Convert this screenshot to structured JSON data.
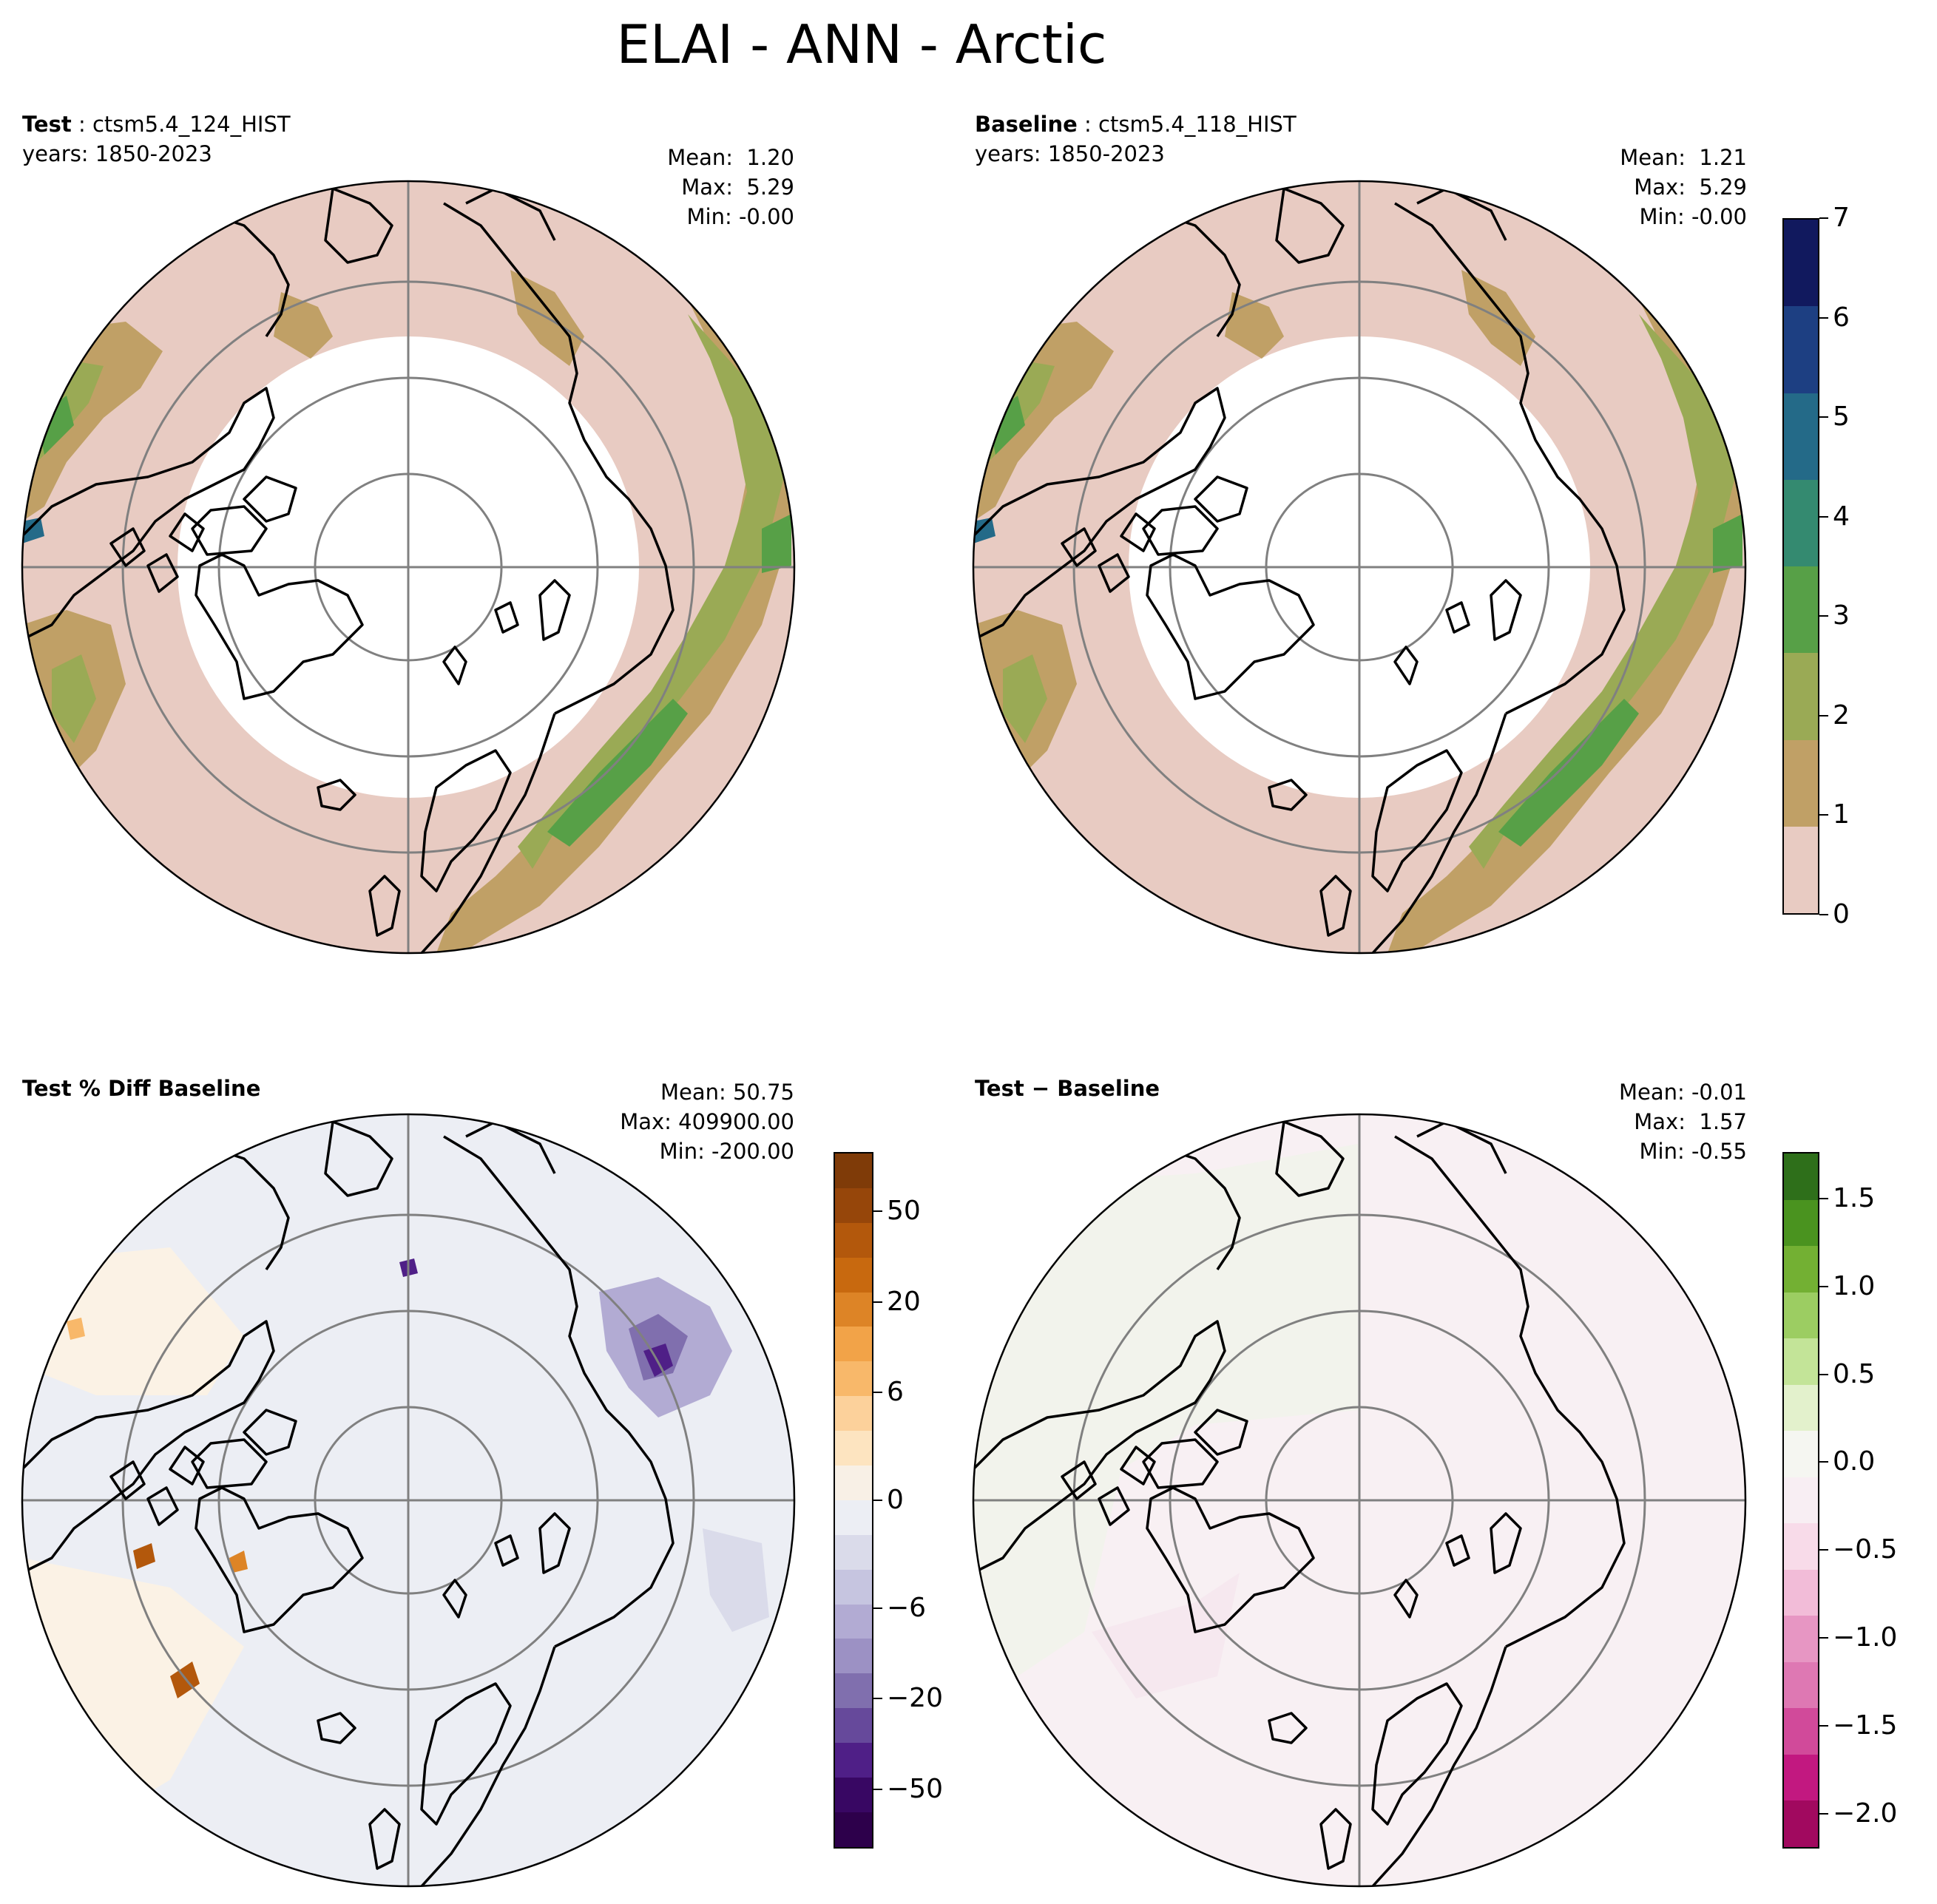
{
  "title": "ELAI - ANN - Arctic",
  "panels": [
    {
      "id": "test",
      "label_bold": "Test",
      "label_sep": " : ",
      "label_name": "ctsm5.4_124_HIST",
      "years": "years: 1850-2023",
      "stats": {
        "mean": "Mean:  1.20",
        "max": "Max:  5.29",
        "min": "Min: -0.00"
      }
    },
    {
      "id": "baseline",
      "label_bold": "Baseline",
      "label_sep": " : ",
      "label_name": "ctsm5.4_118_HIST",
      "years": "years: 1850-2023",
      "stats": {
        "mean": "Mean:  1.21",
        "max": "Max:  5.29",
        "min": "Min: -0.00"
      }
    },
    {
      "id": "pctdiff",
      "label_bold": "Test % Diff Baseline",
      "stats": {
        "mean": "Mean: 50.75",
        "max": "Max: 409900.00",
        "min": "Min: -200.00"
      }
    },
    {
      "id": "diff",
      "label_bold": "Test − Baseline",
      "stats": {
        "mean": "Mean: -0.01",
        "max": "Max:  1.57",
        "min": "Min: -0.55"
      }
    }
  ],
  "chart_data": [
    {
      "type": "heatmap",
      "title": "Test",
      "projection": "north polar stereographic",
      "colorbar": {
        "ticks": [
          "0",
          "1",
          "2",
          "3",
          "4",
          "5",
          "6",
          "7"
        ],
        "colors": [
          "#e8cbc2",
          "#c0a066",
          "#9aaa55",
          "#57a047",
          "#348a70",
          "#246a88",
          "#1d3f82",
          "#11195e"
        ]
      }
    },
    {
      "type": "heatmap",
      "title": "Baseline",
      "projection": "north polar stereographic",
      "colorbar_shared_with": "Test"
    },
    {
      "type": "heatmap",
      "title": "Test % Diff Baseline",
      "projection": "north polar stereographic",
      "colorbar": {
        "ticks": [
          "50",
          "20",
          "6",
          "0",
          "−6",
          "−20",
          "−50"
        ],
        "colors": [
          "#7f3b08",
          "#96460a",
          "#b3580c",
          "#c8690f",
          "#dd8426",
          "#f2a348",
          "#f8b86a",
          "#fcd19b",
          "#fde4c0",
          "#f8f0e6",
          "#eceef4",
          "#dadbea",
          "#c6c5e0",
          "#b2abd3",
          "#9c91c4",
          "#806fae",
          "#66499b",
          "#4f1f87",
          "#380763",
          "#2d004b"
        ]
      }
    },
    {
      "type": "heatmap",
      "title": "Test − Baseline",
      "projection": "north polar stereographic",
      "colorbar": {
        "ticks": [
          "1.5",
          "1.0",
          "0.5",
          "0.0",
          "−0.5",
          "−1.0",
          "−1.5",
          "−2.0"
        ],
        "colors": [
          "#2e6f1a",
          "#4a931f",
          "#73b033",
          "#9ccd62",
          "#c3e498",
          "#e3f1cc",
          "#f5f6f1",
          "#f8eef3",
          "#f8dbe9",
          "#f2bcd8",
          "#e796c3",
          "#de78b3",
          "#d14a9a",
          "#c21880",
          "#a1095f"
        ]
      }
    }
  ]
}
